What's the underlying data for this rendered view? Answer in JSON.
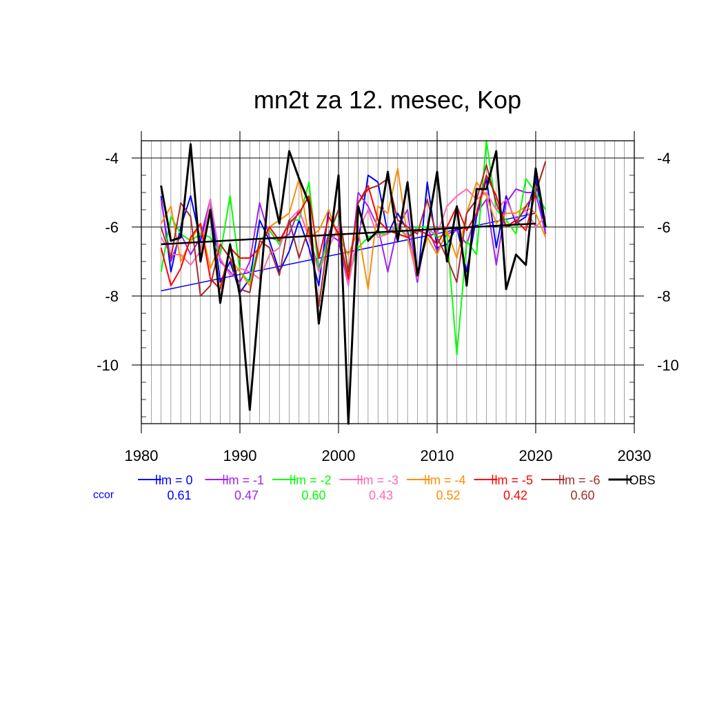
{
  "chart_data": {
    "type": "line",
    "title": "mn2t za 12. mesec, Kop",
    "xlabel": "",
    "ylabel": "",
    "xlim": [
      1980,
      2030
    ],
    "ylim": [
      -11.7,
      -3.5
    ],
    "grid": true,
    "x_ticks": [
      1980,
      1990,
      2000,
      2010,
      2020,
      2030
    ],
    "y_ticks": [
      -4,
      -6,
      -8,
      -10
    ],
    "x": [
      1982,
      1983,
      1984,
      1985,
      1986,
      1987,
      1988,
      1989,
      1990,
      1991,
      1992,
      1993,
      1994,
      1995,
      1996,
      1997,
      1998,
      1999,
      2000,
      2001,
      2002,
      2003,
      2004,
      2005,
      2006,
      2007,
      2008,
      2009,
      2010,
      2011,
      2012,
      2013,
      2014,
      2015,
      2016,
      2017,
      2018,
      2019,
      2020,
      2021
    ],
    "legend": {
      "placement": "bottom",
      "ccor_label": "ccor",
      "ccor_color": "#0000ff",
      "entries": [
        {
          "label": "lm = 0",
          "ccor": "0.61",
          "color": "#0000ff"
        },
        {
          "label": "lm = -1",
          "ccor": "0.47",
          "color": "#a020f0"
        },
        {
          "label": "lm = -2",
          "ccor": "0.60",
          "color": "#00ff00"
        },
        {
          "label": "lm = -3",
          "ccor": "0.43",
          "color": "#ff69b4"
        },
        {
          "label": "lm = -4",
          "ccor": "0.52",
          "color": "#ff8c00"
        },
        {
          "label": "lm = -5",
          "ccor": "0.42",
          "color": "#ff0000"
        },
        {
          "label": "lm = -6",
          "ccor": "0.60",
          "color": "#a52a2a"
        },
        {
          "label": "OBS",
          "ccor": "",
          "color": "#000000"
        }
      ]
    },
    "series": [
      {
        "name": "lm = 0",
        "color": "#0000ff",
        "values": [
          -5.1,
          -7.3,
          -6.0,
          -5.1,
          -6.4,
          -5.2,
          -7.6,
          -7.0,
          -7.9,
          -7.5,
          -5.8,
          -6.4,
          -7.3,
          -6.7,
          -5.8,
          -6.6,
          -7.7,
          -5.5,
          -6.3,
          -7.5,
          -6.4,
          -4.5,
          -4.7,
          -6.2,
          -5.6,
          -6.1,
          -7.6,
          -4.7,
          -6.6,
          -6.5,
          -6.0,
          -7.3,
          -5.7,
          -4.6,
          -6.6,
          -5.1,
          -5.9,
          -5.7,
          -4.6,
          -6.2
        ],
        "trend": [
          -7.85,
          -5.6
        ]
      },
      {
        "name": "lm = -1",
        "color": "#a020f0",
        "values": [
          -5.2,
          -7.0,
          -6.2,
          -6.8,
          -6.3,
          -5.2,
          -7.0,
          -7.3,
          -7.6,
          -7.0,
          -5.3,
          -6.3,
          -6.4,
          -6.2,
          -5.5,
          -6.3,
          -7.2,
          -6.2,
          -6.4,
          -7.7,
          -5.0,
          -5.4,
          -6.0,
          -7.3,
          -6.0,
          -5.5,
          -7.6,
          -6.0,
          -6.7,
          -6.2,
          -6.1,
          -6.5,
          -5.6,
          -5.2,
          -7.1,
          -5.3,
          -4.9,
          -5.0,
          -5.0,
          -6.2
        ],
        "trend": null
      },
      {
        "name": "lm = -2",
        "color": "#00ff00",
        "values": [
          -7.3,
          -5.7,
          -6.2,
          -6.4,
          -6.2,
          -6.3,
          -6.8,
          -5.1,
          -7.3,
          -7.6,
          -6.4,
          -6.1,
          -6.5,
          -5.8,
          -5.8,
          -4.7,
          -7.3,
          -6.3,
          -5.5,
          -7.4,
          -6.6,
          -6.3,
          -6.2,
          -6.2,
          -6.0,
          -6.3,
          -6.0,
          -6.0,
          -6.3,
          -6.2,
          -9.7,
          -6.4,
          -6.8,
          -3.5,
          -5.5,
          -5.8,
          -6.2,
          -4.6,
          -5.0,
          -5.5
        ],
        "trend": null
      },
      {
        "name": "lm = -3",
        "color": "#ff69b4",
        "values": [
          -6.3,
          -6.8,
          -6.8,
          -7.1,
          -6.7,
          -5.2,
          -6.9,
          -7.4,
          -7.2,
          -7.3,
          -7.5,
          -6.8,
          -6.6,
          -5.8,
          -5.5,
          -6.3,
          -7.3,
          -6.6,
          -6.0,
          -7.7,
          -6.1,
          -5.5,
          -6.3,
          -6.2,
          -5.9,
          -6.3,
          -7.5,
          -6.1,
          -6.2,
          -5.4,
          -5.1,
          -4.9,
          -5.2,
          -5.0,
          -5.5,
          -5.2,
          -5.8,
          -5.5,
          -6.0,
          -5.7
        ],
        "trend": null
      },
      {
        "name": "lm = -4",
        "color": "#ff8c00",
        "values": [
          -5.9,
          -5.4,
          -7.0,
          -6.4,
          -5.9,
          -7.2,
          -6.5,
          -6.9,
          -7.3,
          -7.7,
          -6.6,
          -6.0,
          -5.8,
          -5.6,
          -4.6,
          -6.3,
          -6.1,
          -5.5,
          -6.3,
          -6.8,
          -6.1,
          -7.8,
          -5.4,
          -5.6,
          -4.3,
          -6.3,
          -7.3,
          -6.3,
          -6.8,
          -6.1,
          -6.9,
          -5.6,
          -4.7,
          -5.1,
          -5.9,
          -5.6,
          -5.6,
          -5.4,
          -5.6,
          -6.3
        ],
        "trend": null
      },
      {
        "name": "lm = -5",
        "color": "#ff0000",
        "values": [
          -6.6,
          -7.7,
          -7.2,
          -6.3,
          -5.9,
          -7.5,
          -7.8,
          -6.6,
          -6.9,
          -6.9,
          -6.6,
          -6.0,
          -6.4,
          -5.9,
          -5.6,
          -5.1,
          -6.9,
          -5.7,
          -6.2,
          -7.5,
          -5.3,
          -4.8,
          -5.8,
          -6.1,
          -6.2,
          -6.3,
          -6.1,
          -6.2,
          -6.5,
          -6.0,
          -5.4,
          -6.1,
          -5.6,
          -4.5,
          -5.1,
          -6.0,
          -5.8,
          -6.1,
          -5.0,
          -4.1
        ],
        "trend": null
      },
      {
        "name": "lm = -6",
        "color": "#a52a2a",
        "values": [
          -6.0,
          -6.9,
          -5.3,
          -5.7,
          -8.0,
          -7.7,
          -6.5,
          -6.9,
          -7.8,
          -7.9,
          -6.4,
          -6.6,
          -7.4,
          -5.8,
          -6.9,
          -6.0,
          -8.3,
          -6.2,
          -5.5,
          -7.3,
          -5.3,
          -4.9,
          -4.8,
          -4.6,
          -5.8,
          -6.0,
          -6.2,
          -5.2,
          -6.3,
          -6.9,
          -7.6,
          -5.6,
          -5.2,
          -4.2,
          -5.3,
          -6.0,
          -5.9,
          -5.4,
          -5.0,
          -4.1
        ],
        "trend": null
      },
      {
        "name": "OBS",
        "color": "#000000",
        "values": [
          -4.8,
          -6.4,
          -6.3,
          -3.6,
          -7.0,
          -5.5,
          -8.2,
          -6.5,
          -8.0,
          -11.3,
          -7.9,
          -4.6,
          -5.9,
          -3.8,
          -4.6,
          -5.3,
          -8.8,
          -6.7,
          -4.5,
          -11.7,
          -5.4,
          -6.4,
          -6.1,
          -4.4,
          -6.4,
          -4.7,
          -7.4,
          -6.1,
          -4.4,
          -7.0,
          -5.4,
          -7.7,
          -4.9,
          -4.9,
          -3.8,
          -7.8,
          -6.8,
          -7.1,
          -4.3,
          -6.0
        ],
        "trend": [
          -6.5,
          -5.9
        ]
      }
    ]
  }
}
